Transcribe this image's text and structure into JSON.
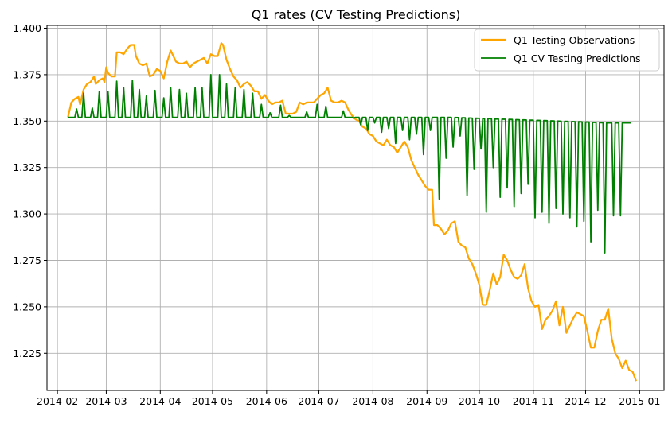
{
  "chart_data": {
    "type": "line",
    "title": "Q1 rates (CV Testing Predictions)",
    "xlabel": "",
    "ylabel": "",
    "grid": true,
    "legend_position": "top-right",
    "x_ticks": [
      "2014-02",
      "2014-03",
      "2014-04",
      "2014-05",
      "2014-06",
      "2014-07",
      "2014-08",
      "2014-09",
      "2014-10",
      "2014-11",
      "2014-12",
      "2015-01"
    ],
    "y_ticks": [
      "1.225",
      "1.250",
      "1.275",
      "1.300",
      "1.325",
      "1.350",
      "1.375",
      "1.400"
    ],
    "xlim": [
      "2014-01-26",
      "2015-01-15"
    ],
    "ylim": [
      1.205,
      1.4015
    ],
    "series": [
      {
        "name": "Q1 Testing Observations",
        "color": "#ffa500",
        "points": [
          [
            "2014-02-07",
            1.352
          ],
          [
            "2014-02-09",
            1.36
          ],
          [
            "2014-02-11",
            1.362
          ],
          [
            "2014-02-13",
            1.363
          ],
          [
            "2014-02-14",
            1.359
          ],
          [
            "2014-02-16",
            1.367
          ],
          [
            "2014-02-18",
            1.37
          ],
          [
            "2014-02-20",
            1.371
          ],
          [
            "2014-02-22",
            1.374
          ],
          [
            "2014-02-23",
            1.37
          ],
          [
            "2014-02-25",
            1.372
          ],
          [
            "2014-02-27",
            1.373
          ],
          [
            "2014-02-28",
            1.371
          ],
          [
            "2014-03-01",
            1.379
          ],
          [
            "2014-03-02",
            1.376
          ],
          [
            "2014-03-04",
            1.374
          ],
          [
            "2014-03-06",
            1.374
          ],
          [
            "2014-03-07",
            1.387
          ],
          [
            "2014-03-09",
            1.387
          ],
          [
            "2014-03-11",
            1.386
          ],
          [
            "2014-03-13",
            1.389
          ],
          [
            "2014-03-15",
            1.391
          ],
          [
            "2014-03-17",
            1.391
          ],
          [
            "2014-03-18",
            1.385
          ],
          [
            "2014-03-20",
            1.381
          ],
          [
            "2014-03-22",
            1.38
          ],
          [
            "2014-03-24",
            1.381
          ],
          [
            "2014-03-26",
            1.374
          ],
          [
            "2014-03-28",
            1.375
          ],
          [
            "2014-03-30",
            1.378
          ],
          [
            "2014-04-01",
            1.377
          ],
          [
            "2014-04-03",
            1.373
          ],
          [
            "2014-04-05",
            1.382
          ],
          [
            "2014-04-07",
            1.388
          ],
          [
            "2014-04-08",
            1.386
          ],
          [
            "2014-04-10",
            1.382
          ],
          [
            "2014-04-12",
            1.381
          ],
          [
            "2014-04-14",
            1.381
          ],
          [
            "2014-04-16",
            1.382
          ],
          [
            "2014-04-18",
            1.379
          ],
          [
            "2014-04-20",
            1.381
          ],
          [
            "2014-04-22",
            1.382
          ],
          [
            "2014-04-24",
            1.383
          ],
          [
            "2014-04-26",
            1.384
          ],
          [
            "2014-04-28",
            1.381
          ],
          [
            "2014-04-30",
            1.386
          ],
          [
            "2014-05-02",
            1.385
          ],
          [
            "2014-05-04",
            1.385
          ],
          [
            "2014-05-06",
            1.392
          ],
          [
            "2014-05-07",
            1.391
          ],
          [
            "2014-05-09",
            1.383
          ],
          [
            "2014-05-11",
            1.378
          ],
          [
            "2014-05-13",
            1.374
          ],
          [
            "2014-05-15",
            1.372
          ],
          [
            "2014-05-17",
            1.368
          ],
          [
            "2014-05-19",
            1.37
          ],
          [
            "2014-05-21",
            1.371
          ],
          [
            "2014-05-23",
            1.369
          ],
          [
            "2014-05-25",
            1.366
          ],
          [
            "2014-05-27",
            1.366
          ],
          [
            "2014-05-29",
            1.362
          ],
          [
            "2014-05-31",
            1.364
          ],
          [
            "2014-06-02",
            1.361
          ],
          [
            "2014-06-04",
            1.359
          ],
          [
            "2014-06-06",
            1.36
          ],
          [
            "2014-06-08",
            1.36
          ],
          [
            "2014-06-10",
            1.361
          ],
          [
            "2014-06-12",
            1.354
          ],
          [
            "2014-06-14",
            1.354
          ],
          [
            "2014-06-16",
            1.354
          ],
          [
            "2014-06-18",
            1.355
          ],
          [
            "2014-06-20",
            1.36
          ],
          [
            "2014-06-22",
            1.359
          ],
          [
            "2014-06-24",
            1.36
          ],
          [
            "2014-06-26",
            1.36
          ],
          [
            "2014-06-28",
            1.36
          ],
          [
            "2014-06-30",
            1.362
          ],
          [
            "2014-07-02",
            1.364
          ],
          [
            "2014-07-04",
            1.365
          ],
          [
            "2014-07-06",
            1.368
          ],
          [
            "2014-07-08",
            1.361
          ],
          [
            "2014-07-10",
            1.36
          ],
          [
            "2014-07-12",
            1.36
          ],
          [
            "2014-07-14",
            1.361
          ],
          [
            "2014-07-16",
            1.36
          ],
          [
            "2014-07-18",
            1.356
          ],
          [
            "2014-07-20",
            1.353
          ],
          [
            "2014-07-22",
            1.351
          ],
          [
            "2014-07-24",
            1.35
          ],
          [
            "2014-07-26",
            1.347
          ],
          [
            "2014-07-28",
            1.346
          ],
          [
            "2014-07-30",
            1.343
          ],
          [
            "2014-08-01",
            1.342
          ],
          [
            "2014-08-03",
            1.339
          ],
          [
            "2014-08-05",
            1.338
          ],
          [
            "2014-08-07",
            1.337
          ],
          [
            "2014-08-09",
            1.34
          ],
          [
            "2014-08-11",
            1.337
          ],
          [
            "2014-08-13",
            1.336
          ],
          [
            "2014-08-15",
            1.333
          ],
          [
            "2014-08-17",
            1.336
          ],
          [
            "2014-08-19",
            1.339
          ],
          [
            "2014-08-21",
            1.336
          ],
          [
            "2014-08-23",
            1.329
          ],
          [
            "2014-08-25",
            1.325
          ],
          [
            "2014-08-27",
            1.321
          ],
          [
            "2014-08-29",
            1.318
          ],
          [
            "2014-08-31",
            1.315
          ],
          [
            "2014-09-02",
            1.313
          ],
          [
            "2014-09-04",
            1.313
          ],
          [
            "2014-09-05",
            1.294
          ],
          [
            "2014-09-07",
            1.294
          ],
          [
            "2014-09-09",
            1.292
          ],
          [
            "2014-09-11",
            1.289
          ],
          [
            "2014-09-13",
            1.291
          ],
          [
            "2014-09-15",
            1.295
          ],
          [
            "2014-09-17",
            1.296
          ],
          [
            "2014-09-19",
            1.285
          ],
          [
            "2014-09-21",
            1.283
          ],
          [
            "2014-09-23",
            1.282
          ],
          [
            "2014-09-25",
            1.276
          ],
          [
            "2014-09-27",
            1.273
          ],
          [
            "2014-09-29",
            1.268
          ],
          [
            "2014-10-01",
            1.262
          ],
          [
            "2014-10-03",
            1.251
          ],
          [
            "2014-10-05",
            1.251
          ],
          [
            "2014-10-07",
            1.259
          ],
          [
            "2014-10-09",
            1.268
          ],
          [
            "2014-10-11",
            1.262
          ],
          [
            "2014-10-13",
            1.266
          ],
          [
            "2014-10-15",
            1.278
          ],
          [
            "2014-10-17",
            1.275
          ],
          [
            "2014-10-19",
            1.27
          ],
          [
            "2014-10-21",
            1.266
          ],
          [
            "2014-10-23",
            1.265
          ],
          [
            "2014-10-25",
            1.267
          ],
          [
            "2014-10-27",
            1.273
          ],
          [
            "2014-10-29",
            1.26
          ],
          [
            "2014-10-31",
            1.253
          ],
          [
            "2014-11-02",
            1.25
          ],
          [
            "2014-11-04",
            1.251
          ],
          [
            "2014-11-06",
            1.238
          ],
          [
            "2014-11-08",
            1.243
          ],
          [
            "2014-11-10",
            1.245
          ],
          [
            "2014-11-12",
            1.248
          ],
          [
            "2014-11-14",
            1.253
          ],
          [
            "2014-11-16",
            1.24
          ],
          [
            "2014-11-18",
            1.25
          ],
          [
            "2014-11-20",
            1.236
          ],
          [
            "2014-11-22",
            1.24
          ],
          [
            "2014-11-24",
            1.244
          ],
          [
            "2014-11-26",
            1.247
          ],
          [
            "2014-11-28",
            1.246
          ],
          [
            "2014-11-30",
            1.245
          ],
          [
            "2014-12-02",
            1.237
          ],
          [
            "2014-12-04",
            1.228
          ],
          [
            "2014-12-06",
            1.228
          ],
          [
            "2014-12-08",
            1.237
          ],
          [
            "2014-12-10",
            1.243
          ],
          [
            "2014-12-12",
            1.243
          ],
          [
            "2014-12-14",
            1.249
          ],
          [
            "2014-12-16",
            1.233
          ],
          [
            "2014-12-18",
            1.225
          ],
          [
            "2014-12-20",
            1.222
          ],
          [
            "2014-12-22",
            1.217
          ],
          [
            "2014-12-24",
            1.221
          ],
          [
            "2014-12-26",
            1.216
          ],
          [
            "2014-12-28",
            1.215
          ],
          [
            "2014-12-30",
            1.21
          ]
        ]
      },
      {
        "name": "Q1 CV Testing Predictions",
        "color": "#008000",
        "baseline_points": [
          [
            "2014-02-07",
            1.352
          ],
          [
            "2014-07-20",
            1.352
          ],
          [
            "2014-09-15",
            1.352
          ],
          [
            "2014-10-15",
            1.351
          ],
          [
            "2014-11-15",
            1.35
          ],
          [
            "2014-12-15",
            1.349
          ],
          [
            "2014-12-27",
            1.349
          ]
        ],
        "spikes": [
          [
            "2014-02-12",
            1.3565
          ],
          [
            "2014-02-16",
            1.365
          ],
          [
            "2014-02-21",
            1.357
          ],
          [
            "2014-02-25",
            1.366
          ],
          [
            "2014-03-02",
            1.366
          ],
          [
            "2014-03-07",
            1.3715
          ],
          [
            "2014-03-11",
            1.368
          ],
          [
            "2014-03-16",
            1.372
          ],
          [
            "2014-03-20",
            1.367
          ],
          [
            "2014-03-24",
            1.3635
          ],
          [
            "2014-03-29",
            1.3665
          ],
          [
            "2014-04-03",
            1.3625
          ],
          [
            "2014-04-07",
            1.368
          ],
          [
            "2014-04-12",
            1.367
          ],
          [
            "2014-04-16",
            1.365
          ],
          [
            "2014-04-21",
            1.368
          ],
          [
            "2014-04-25",
            1.368
          ],
          [
            "2014-04-30",
            1.375
          ],
          [
            "2014-05-05",
            1.375
          ],
          [
            "2014-05-09",
            1.37
          ],
          [
            "2014-05-14",
            1.368
          ],
          [
            "2014-05-19",
            1.367
          ],
          [
            "2014-05-24",
            1.365
          ],
          [
            "2014-05-29",
            1.359
          ],
          [
            "2014-06-03",
            1.3545
          ],
          [
            "2014-06-09",
            1.3585
          ],
          [
            "2014-06-14",
            1.353
          ],
          [
            "2014-06-24",
            1.355
          ],
          [
            "2014-06-30",
            1.359
          ],
          [
            "2014-07-05",
            1.358
          ],
          [
            "2014-07-15",
            1.3555
          ],
          [
            "2014-07-21",
            1.3515
          ],
          [
            "2014-07-25",
            1.348
          ],
          [
            "2014-07-29",
            1.345
          ],
          [
            "2014-08-02",
            1.349
          ],
          [
            "2014-08-06",
            1.344
          ],
          [
            "2014-08-10",
            1.346
          ],
          [
            "2014-08-14",
            1.338
          ],
          [
            "2014-08-18",
            1.345
          ],
          [
            "2014-08-22",
            1.34
          ],
          [
            "2014-08-26",
            1.343
          ],
          [
            "2014-08-30",
            1.332
          ],
          [
            "2014-09-03",
            1.345
          ],
          [
            "2014-09-08",
            1.308
          ],
          [
            "2014-09-12",
            1.33
          ],
          [
            "2014-09-16",
            1.336
          ],
          [
            "2014-09-20",
            1.342
          ],
          [
            "2014-09-24",
            1.31
          ],
          [
            "2014-09-28",
            1.324
          ],
          [
            "2014-10-02",
            1.335
          ],
          [
            "2014-10-05",
            1.301
          ],
          [
            "2014-10-09",
            1.325
          ],
          [
            "2014-10-13",
            1.309
          ],
          [
            "2014-10-17",
            1.314
          ],
          [
            "2014-10-21",
            1.304
          ],
          [
            "2014-10-25",
            1.311
          ],
          [
            "2014-10-29",
            1.316
          ],
          [
            "2014-11-02",
            1.298
          ],
          [
            "2014-11-06",
            1.301
          ],
          [
            "2014-11-10",
            1.295
          ],
          [
            "2014-11-14",
            1.303
          ],
          [
            "2014-11-18",
            1.3
          ],
          [
            "2014-11-22",
            1.298
          ],
          [
            "2014-11-26",
            1.293
          ],
          [
            "2014-11-30",
            1.296
          ],
          [
            "2014-12-04",
            1.285
          ],
          [
            "2014-12-08",
            1.302
          ],
          [
            "2014-12-12",
            1.279
          ],
          [
            "2014-12-17",
            1.299
          ],
          [
            "2014-12-21",
            1.299
          ]
        ]
      }
    ]
  }
}
